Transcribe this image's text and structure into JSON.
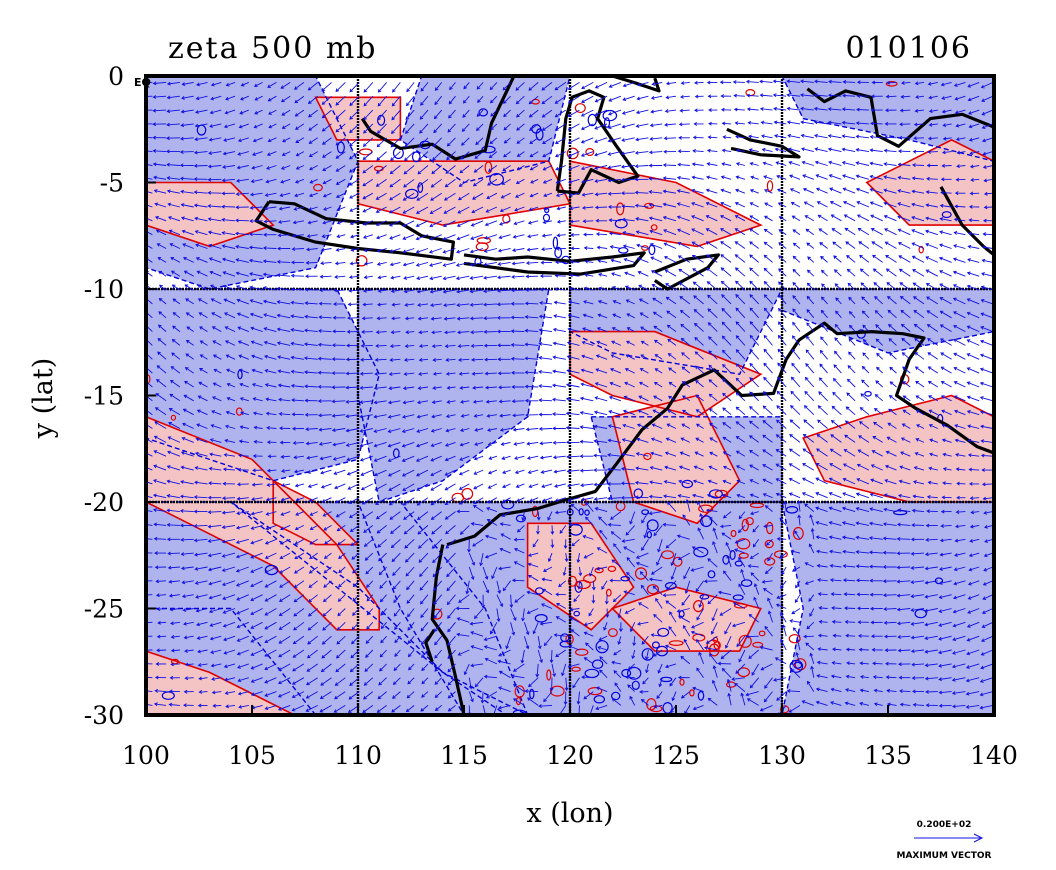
{
  "chart_data": {
    "type": "heatmap",
    "title": "zeta 500 mb",
    "date_label": "010106",
    "xlabel": "x (lon)",
    "ylabel": "y (lat)",
    "xlim": [
      100,
      140
    ],
    "ylim": [
      -30,
      0
    ],
    "x_ticks": [
      100,
      105,
      110,
      115,
      120,
      125,
      130,
      135,
      140
    ],
    "y_ticks": [
      0,
      -5,
      -10,
      -15,
      -20,
      -25,
      -30
    ],
    "x_tick_labels": [
      "100",
      "105",
      "110",
      "115",
      "120",
      "125",
      "130",
      "135",
      "140"
    ],
    "y_tick_labels": [
      "0",
      "-5",
      "-10",
      "-15",
      "-20",
      "-25",
      "-30"
    ],
    "corner_label": "EQ",
    "grid": true,
    "grid_lon": [
      110,
      120,
      130
    ],
    "grid_lat": [
      -10,
      -20
    ],
    "fields": [
      {
        "name": "positive vorticity",
        "color": "#f4c4c4",
        "contour_color": "#e00000"
      },
      {
        "name": "negative vorticity",
        "color": "#b0b4ee",
        "contour_color": "#0000dd"
      },
      {
        "name": "wind vectors",
        "color": "#1010e0"
      }
    ],
    "coastline_color": "#000000",
    "vector_legend": {
      "value": "0.200E+02",
      "label": "MAXIMUM VECTOR"
    }
  },
  "colors": {
    "background": "#ffffff",
    "positive_fill": "#f4c4c4",
    "positive_line": "#e00000",
    "negative_fill": "#b0b4ee",
    "negative_line": "#0000dd",
    "vector": "#1010e0",
    "coast": "#000000"
  }
}
